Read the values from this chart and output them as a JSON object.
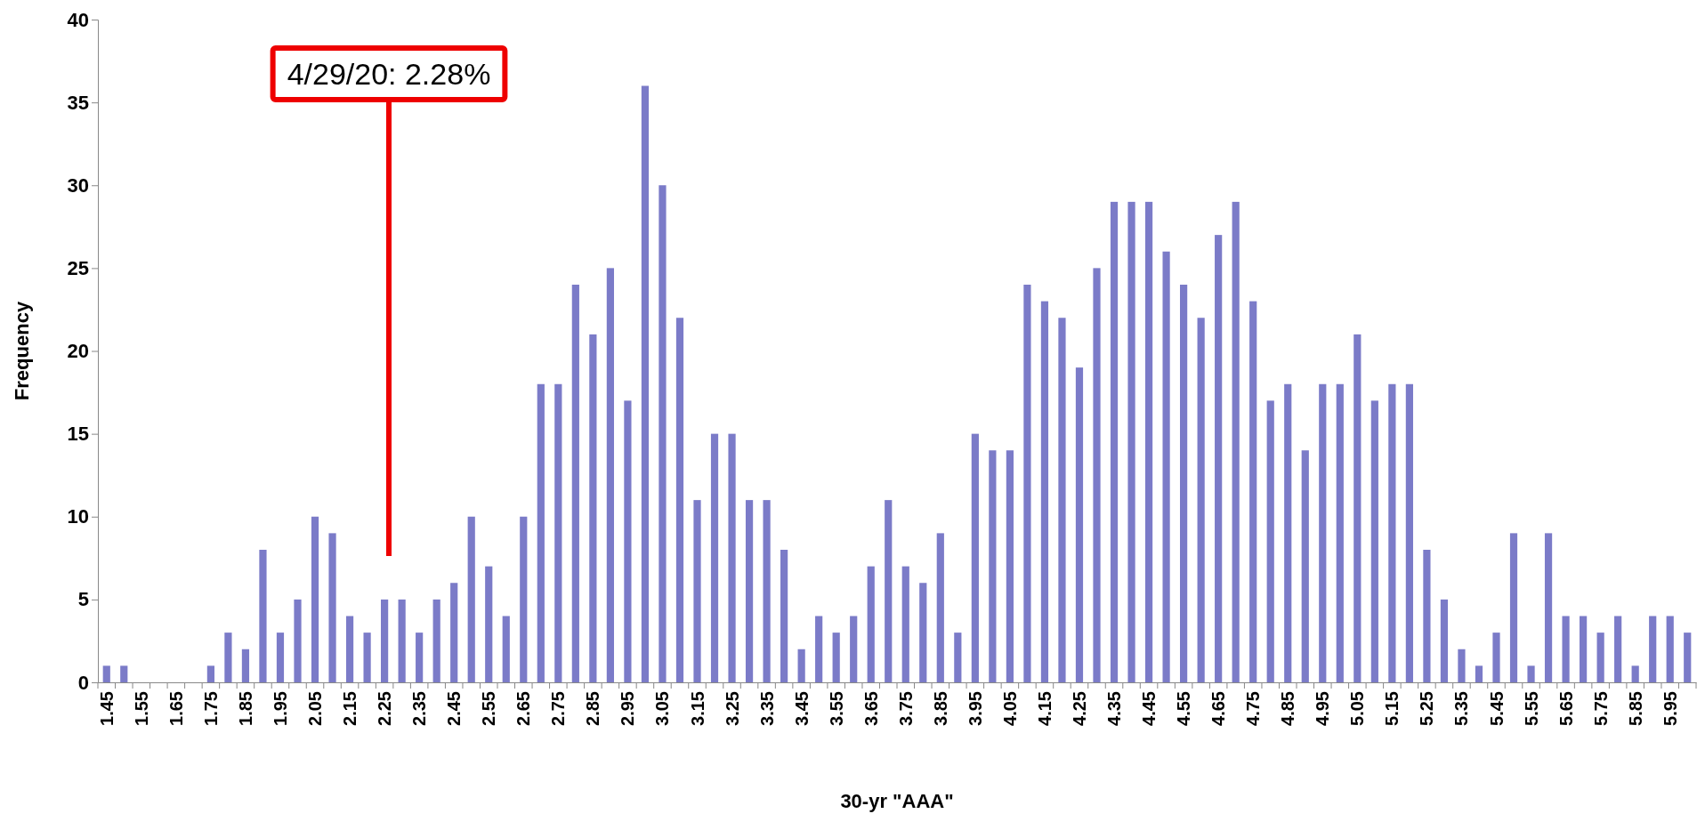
{
  "chart_data": {
    "type": "bar",
    "xlabel": "30-yr \"AAA\"",
    "ylabel": "Frequency",
    "categories": [
      "1.45",
      null,
      "1.55",
      null,
      "1.65",
      null,
      "1.75",
      null,
      "1.85",
      null,
      "1.95",
      null,
      "2.05",
      null,
      "2.15",
      null,
      "2.25",
      null,
      "2.35",
      null,
      "2.45",
      null,
      "2.55",
      null,
      "2.65",
      null,
      "2.75",
      null,
      "2.85",
      null,
      "2.95",
      null,
      "3.05",
      null,
      "3.15",
      null,
      "3.25",
      null,
      "3.35",
      null,
      "3.45",
      null,
      "3.55",
      null,
      "3.65",
      null,
      "3.75",
      null,
      "3.85",
      null,
      "3.95",
      null,
      "4.05",
      null,
      "4.15",
      null,
      "4.25",
      null,
      "4.35",
      null,
      "4.45",
      null,
      "4.55",
      null,
      "4.65",
      null,
      "4.75",
      null,
      "4.85",
      null,
      "4.95",
      null,
      "5.05",
      null,
      "5.15",
      null,
      "5.25",
      null,
      "5.35",
      null,
      "5.45",
      null,
      "5.55",
      null,
      "5.65",
      null,
      "5.75",
      null,
      "5.85",
      null,
      "5.95",
      null
    ],
    "values": [
      1,
      1,
      0,
      0,
      0,
      0,
      1,
      3,
      2,
      8,
      3,
      5,
      10,
      9,
      4,
      3,
      5,
      5,
      3,
      5,
      6,
      10,
      7,
      4,
      10,
      18,
      18,
      24,
      21,
      25,
      17,
      36,
      30,
      22,
      11,
      15,
      15,
      11,
      11,
      8,
      2,
      4,
      3,
      4,
      7,
      11,
      7,
      6,
      9,
      3,
      15,
      14,
      14,
      24,
      23,
      22,
      19,
      25,
      29,
      29,
      29,
      26,
      24,
      22,
      27,
      29,
      23,
      17,
      18,
      14,
      18,
      18,
      21,
      17,
      18,
      18,
      8,
      5,
      2,
      1,
      3,
      9,
      1,
      9,
      4,
      4,
      3,
      4,
      1,
      4,
      4,
      3
    ],
    "color": "#7b7bc8",
    "ylim": [
      0,
      40
    ],
    "yticks": [
      0,
      5,
      10,
      15,
      20,
      25,
      30,
      35,
      40
    ],
    "grid": false,
    "annotations": [
      "4/29/20: 2.28%"
    ]
  }
}
